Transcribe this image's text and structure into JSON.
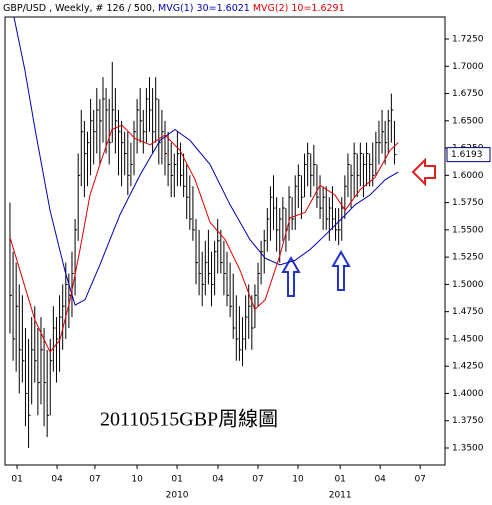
{
  "chart_data": {
    "type": "ohlc",
    "title": "GBP/USD , Weekly, # 126 / 500,",
    "annotation": "20110515GBP周線圖",
    "last_price_label": "1.6193",
    "color": "#000000",
    "high": [
      1.575,
      1.53,
      1.52,
      1.5,
      1.49,
      1.46,
      1.45,
      1.47,
      1.48,
      1.46,
      1.47,
      1.46,
      1.44,
      1.45,
      1.48,
      1.47,
      1.49,
      1.5,
      1.52,
      1.51,
      1.53,
      1.56,
      1.62,
      1.66,
      1.65,
      1.64,
      1.67,
      1.66,
      1.68,
      1.67,
      1.69,
      1.68,
      1.67,
      1.704,
      1.68,
      1.66,
      1.65,
      1.64,
      1.64,
      1.63,
      1.65,
      1.67,
      1.68,
      1.66,
      1.68,
      1.69,
      1.68,
      1.69,
      1.67,
      1.66,
      1.65,
      1.64,
      1.63,
      1.62,
      1.64,
      1.63,
      1.62,
      1.61,
      1.6,
      1.59,
      1.56,
      1.55,
      1.53,
      1.54,
      1.55,
      1.53,
      1.54,
      1.56,
      1.55,
      1.54,
      1.53,
      1.52,
      1.51,
      1.49,
      1.48,
      1.47,
      1.49,
      1.5,
      1.49,
      1.5,
      1.52,
      1.54,
      1.55,
      1.57,
      1.59,
      1.6,
      1.58,
      1.57,
      1.58,
      1.57,
      1.59,
      1.58,
      1.6,
      1.61,
      1.6,
      1.62,
      1.63,
      1.62,
      1.628,
      1.61,
      1.6,
      1.59,
      1.59,
      1.58,
      1.59,
      1.57,
      1.57,
      1.58,
      1.6,
      1.62,
      1.61,
      1.63,
      1.62,
      1.63,
      1.62,
      1.63,
      1.62,
      1.63,
      1.64,
      1.65,
      1.66,
      1.65,
      1.66,
      1.675,
      1.65
    ],
    "low": [
      1.455,
      1.43,
      1.42,
      1.4,
      1.41,
      1.37,
      1.35,
      1.39,
      1.41,
      1.38,
      1.39,
      1.37,
      1.36,
      1.38,
      1.42,
      1.41,
      1.42,
      1.44,
      1.45,
      1.46,
      1.47,
      1.49,
      1.54,
      1.59,
      1.58,
      1.59,
      1.6,
      1.61,
      1.62,
      1.61,
      1.63,
      1.62,
      1.61,
      1.63,
      1.62,
      1.6,
      1.59,
      1.6,
      1.582,
      1.59,
      1.6,
      1.62,
      1.63,
      1.62,
      1.63,
      1.64,
      1.62,
      1.63,
      1.61,
      1.61,
      1.6,
      1.59,
      1.58,
      1.58,
      1.59,
      1.59,
      1.58,
      1.56,
      1.55,
      1.54,
      1.5,
      1.49,
      1.48,
      1.49,
      1.5,
      1.48,
      1.49,
      1.51,
      1.51,
      1.49,
      1.48,
      1.47,
      1.45,
      1.43,
      1.43,
      1.425,
      1.44,
      1.45,
      1.44,
      1.46,
      1.48,
      1.5,
      1.51,
      1.53,
      1.54,
      1.55,
      1.53,
      1.52,
      1.54,
      1.53,
      1.54,
      1.55,
      1.55,
      1.57,
      1.56,
      1.58,
      1.59,
      1.58,
      1.59,
      1.57,
      1.56,
      1.55,
      1.55,
      1.54,
      1.55,
      1.54,
      1.536,
      1.54,
      1.56,
      1.58,
      1.57,
      1.58,
      1.58,
      1.59,
      1.58,
      1.59,
      1.59,
      1.59,
      1.6,
      1.61,
      1.62,
      1.61,
      1.62,
      1.63,
      1.61
    ],
    "close": [
      1.49,
      1.45,
      1.48,
      1.44,
      1.43,
      1.4,
      1.38,
      1.44,
      1.43,
      1.41,
      1.44,
      1.41,
      1.38,
      1.43,
      1.46,
      1.45,
      1.47,
      1.48,
      1.5,
      1.49,
      1.51,
      1.55,
      1.6,
      1.64,
      1.62,
      1.63,
      1.65,
      1.64,
      1.66,
      1.65,
      1.67,
      1.66,
      1.63,
      1.66,
      1.65,
      1.64,
      1.63,
      1.62,
      1.6,
      1.61,
      1.64,
      1.66,
      1.65,
      1.64,
      1.67,
      1.66,
      1.64,
      1.67,
      1.63,
      1.64,
      1.62,
      1.61,
      1.6,
      1.61,
      1.62,
      1.6,
      1.59,
      1.58,
      1.56,
      1.55,
      1.52,
      1.51,
      1.5,
      1.52,
      1.51,
      1.5,
      1.53,
      1.54,
      1.52,
      1.51,
      1.49,
      1.48,
      1.46,
      1.45,
      1.44,
      1.45,
      1.47,
      1.48,
      1.46,
      1.49,
      1.51,
      1.53,
      1.54,
      1.56,
      1.58,
      1.57,
      1.55,
      1.56,
      1.57,
      1.55,
      1.58,
      1.56,
      1.59,
      1.6,
      1.58,
      1.61,
      1.62,
      1.6,
      1.61,
      1.58,
      1.57,
      1.58,
      1.56,
      1.57,
      1.56,
      1.55,
      1.55,
      1.57,
      1.59,
      1.61,
      1.6,
      1.62,
      1.6,
      1.62,
      1.61,
      1.62,
      1.61,
      1.6,
      1.63,
      1.63,
      1.64,
      1.63,
      1.65,
      1.66,
      1.619
    ],
    "series": [
      {
        "name": "MVG(1) 30=1.6021",
        "color": "#0000b0",
        "x": [
          1.3,
          4.8,
          8.1,
          12.9,
          17.7,
          21.0,
          24.2,
          29.0,
          35.5,
          41.9,
          48.4,
          53.2,
          58.1,
          64.5,
          71.0,
          77.4,
          82.3,
          87.1,
          91.9,
          96.8,
          101.6,
          106.5,
          111.3,
          116.1,
          121,
          125.2
        ],
        "values": [
          1.745,
          1.697,
          1.642,
          1.568,
          1.513,
          1.481,
          1.486,
          1.518,
          1.564,
          1.6,
          1.632,
          1.642,
          1.632,
          1.61,
          1.573,
          1.541,
          1.524,
          1.518,
          1.522,
          1.532,
          1.545,
          1.559,
          1.573,
          1.582,
          1.596,
          1.603
        ]
      },
      {
        "name": "MVG(2) 10=1.6291",
        "color": "#e00000",
        "x": [
          0,
          3.2,
          8.1,
          12.9,
          16.1,
          19.4,
          22.6,
          25.8,
          29,
          32.9,
          36.1,
          40.3,
          45.2,
          50,
          54.8,
          59.7,
          64.5,
          69.4,
          74.2,
          79,
          82.3,
          87.1,
          90.3,
          95.2,
          100,
          104.8,
          108.1,
          113,
          117.7,
          122.6,
          125.2
        ],
        "values": [
          1.543,
          1.513,
          1.467,
          1.438,
          1.449,
          1.486,
          1.532,
          1.582,
          1.61,
          1.642,
          1.646,
          1.634,
          1.628,
          1.637,
          1.623,
          1.596,
          1.557,
          1.541,
          1.513,
          1.477,
          1.486,
          1.527,
          1.561,
          1.566,
          1.591,
          1.582,
          1.568,
          1.587,
          1.598,
          1.623,
          1.63
        ]
      }
    ],
    "xlim": [
      -1.6,
      140.3
    ],
    "ylim": [
      1.3344,
      1.7452
    ],
    "xticks": [
      {
        "value": 2.3,
        "label": "01"
      },
      {
        "value": 15.2,
        "label": "04"
      },
      {
        "value": 27.4,
        "label": "07"
      },
      {
        "value": 41,
        "label": "10"
      },
      {
        "value": 53.9,
        "label": "01"
      },
      {
        "value": 67.1,
        "label": "04"
      },
      {
        "value": 80,
        "label": "07"
      },
      {
        "value": 92.9,
        "label": "10"
      },
      {
        "value": 106.5,
        "label": "01"
      },
      {
        "value": 119.4,
        "label": "04"
      },
      {
        "value": 132.3,
        "label": "07"
      }
    ],
    "year_ticks": [
      {
        "value": 53.9,
        "label": "2010"
      },
      {
        "value": 106.5,
        "label": "2011"
      }
    ],
    "yticks": [
      {
        "value": 1.35,
        "label": "1.3500"
      },
      {
        "value": 1.375,
        "label": "1.3750"
      },
      {
        "value": 1.4,
        "label": "1.4000"
      },
      {
        "value": 1.425,
        "label": "1.4250"
      },
      {
        "value": 1.45,
        "label": "1.4500"
      },
      {
        "value": 1.475,
        "label": "1.4750"
      },
      {
        "value": 1.5,
        "label": "1.5000"
      },
      {
        "value": 1.525,
        "label": "1.5250"
      },
      {
        "value": 1.55,
        "label": "1.5500"
      },
      {
        "value": 1.575,
        "label": "1.5750"
      },
      {
        "value": 1.6,
        "label": "1.6000"
      },
      {
        "value": 1.625,
        "label": "1.6250"
      },
      {
        "value": 1.65,
        "label": "1.6500"
      },
      {
        "value": 1.675,
        "label": "1.6750"
      },
      {
        "value": 1.7,
        "label": "1.7000"
      },
      {
        "value": 1.725,
        "label": "1.7250"
      }
    ]
  }
}
